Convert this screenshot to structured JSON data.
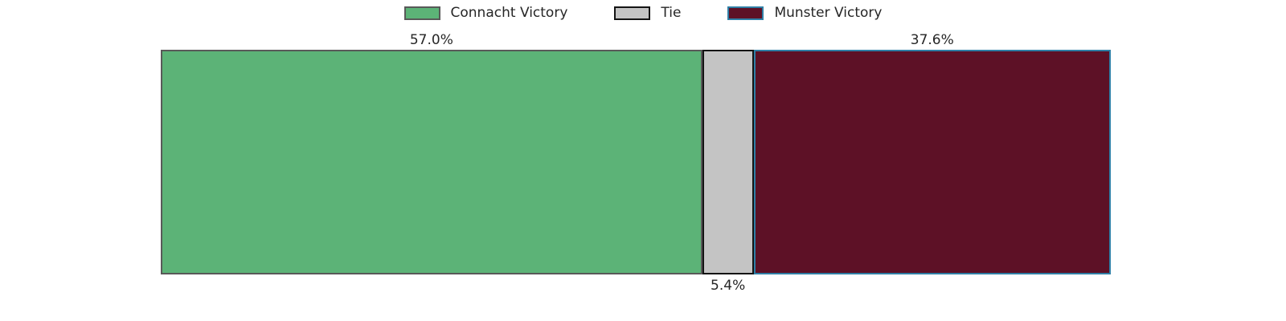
{
  "chart_data": {
    "type": "bar",
    "variant": "horizontal-stacked-single-bar",
    "title": "",
    "xlabel": "",
    "ylabel": "",
    "xlim": [
      0,
      100
    ],
    "grid": false,
    "legend_position": "top-center",
    "categories": [
      "Connacht Victory",
      "Tie",
      "Munster Victory"
    ],
    "values": [
      57.0,
      5.4,
      37.6
    ],
    "segments": [
      {
        "label": "Connacht Victory",
        "value": 57.0,
        "display": "57.0%",
        "fill_color": "#5cb377",
        "edge_color": "#595959",
        "value_label_position": "above"
      },
      {
        "label": "Tie",
        "value": 5.4,
        "display": "5.4%",
        "fill_color": "#c4c4c4",
        "edge_color": "#141414",
        "value_label_position": "below"
      },
      {
        "label": "Munster Victory",
        "value": 37.6,
        "display": "37.6%",
        "fill_color": "#5d1126",
        "edge_color": "#2f7fa6",
        "value_label_position": "above"
      }
    ]
  },
  "colors": {
    "background": "#ffffff",
    "text": "#262626"
  }
}
